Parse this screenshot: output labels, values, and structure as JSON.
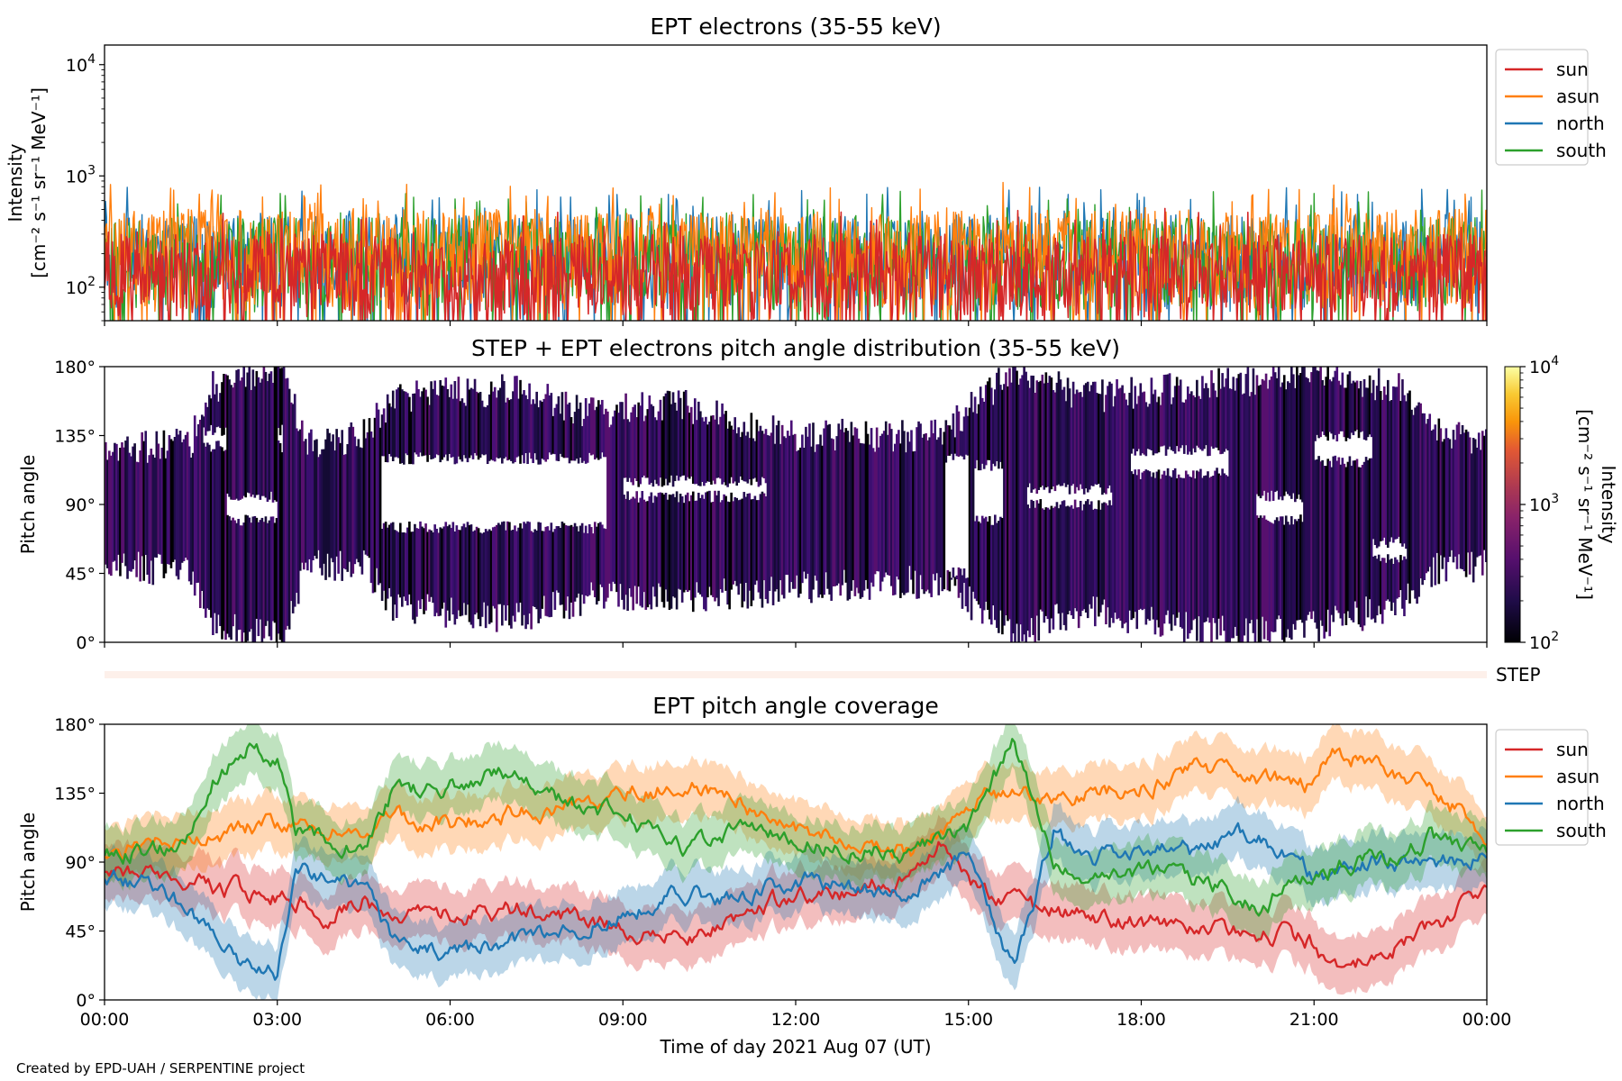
{
  "credit": "Created by EPD-UAH / SERPENTINE project",
  "chart_data": [
    {
      "type": "line",
      "title": "EPT electrons (35-55 keV)",
      "ylabel_line1": "Intensity",
      "ylabel_line2": "[cm⁻² s⁻¹ sr⁻¹ MeV⁻¹]",
      "yscale": "log",
      "ylim": [
        50,
        15000
      ],
      "yticks": [
        {
          "value": 100,
          "base": "10",
          "exp": "2"
        },
        {
          "value": 1000,
          "base": "10",
          "exp": "3"
        },
        {
          "value": 10000,
          "base": "10",
          "exp": "4"
        }
      ],
      "xlim": [
        0,
        24
      ],
      "legend_position": "outside-right-top",
      "series": [
        {
          "name": "sun",
          "color": "#d62728",
          "typical_range": [
            50,
            300
          ]
        },
        {
          "name": "asun",
          "color": "#ff7f0e",
          "typical_range": [
            60,
            500
          ]
        },
        {
          "name": "north",
          "color": "#1f77b4",
          "typical_range": [
            60,
            450
          ]
        },
        {
          "name": "south",
          "color": "#2ca02c",
          "typical_range": [
            60,
            420
          ]
        }
      ]
    },
    {
      "type": "heatmap",
      "title": "STEP + EPT electrons pitch angle distribution (35-55 keV)",
      "ylabel": "Pitch angle",
      "ylim": [
        0,
        180
      ],
      "yticks": [
        "0°",
        "45°",
        "90°",
        "135°",
        "180°"
      ],
      "xlim": [
        0,
        24
      ],
      "colorscale": "inferno",
      "color_range": [
        100,
        10000
      ],
      "colorbar_label_line1": "Intensity",
      "colorbar_label_line2": "[cm⁻² s⁻¹ sr⁻¹ MeV⁻¹]",
      "colorbar_ticks": [
        {
          "value": 100,
          "base": "10",
          "exp": "2"
        },
        {
          "value": 1000,
          "base": "10",
          "exp": "3"
        },
        {
          "value": 10000,
          "base": "10",
          "exp": "4"
        }
      ],
      "envelope": [
        {
          "t": 0.0,
          "lo": 50,
          "hi": 125
        },
        {
          "t": 1.5,
          "lo": 45,
          "hi": 130
        },
        {
          "t": 1.8,
          "lo": 15,
          "hi": 165
        },
        {
          "t": 2.5,
          "lo": 5,
          "hi": 175
        },
        {
          "t": 3.1,
          "lo": 5,
          "hi": 178
        },
        {
          "t": 3.5,
          "lo": 50,
          "hi": 130
        },
        {
          "t": 4.5,
          "lo": 50,
          "hi": 135
        },
        {
          "t": 5.0,
          "lo": 25,
          "hi": 160
        },
        {
          "t": 7.0,
          "lo": 15,
          "hi": 165
        },
        {
          "t": 8.5,
          "lo": 30,
          "hi": 150
        },
        {
          "t": 10.0,
          "lo": 30,
          "hi": 155
        },
        {
          "t": 12.0,
          "lo": 35,
          "hi": 135
        },
        {
          "t": 14.5,
          "lo": 40,
          "hi": 135
        },
        {
          "t": 15.8,
          "lo": 5,
          "hi": 178
        },
        {
          "t": 17.0,
          "lo": 20,
          "hi": 160
        },
        {
          "t": 19.8,
          "lo": 5,
          "hi": 170
        },
        {
          "t": 21.0,
          "lo": 10,
          "hi": 178
        },
        {
          "t": 22.5,
          "lo": 25,
          "hi": 165
        },
        {
          "t": 23.2,
          "lo": 50,
          "hi": 135
        },
        {
          "t": 24.0,
          "lo": 50,
          "hi": 130
        }
      ],
      "gaps": [
        {
          "t0": 4.8,
          "t1": 8.7,
          "lo": 75,
          "hi": 120
        },
        {
          "t0": 2.1,
          "t1": 3.0,
          "lo": 80,
          "hi": 95
        },
        {
          "t0": 1.7,
          "t1": 3.1,
          "lo": 128,
          "hi": 138
        },
        {
          "t0": 9.0,
          "t1": 11.5,
          "lo": 95,
          "hi": 105
        },
        {
          "t0": 14.6,
          "t1": 15.0,
          "lo": 45,
          "hi": 120
        },
        {
          "t0": 15.1,
          "t1": 15.6,
          "lo": 80,
          "hi": 115
        },
        {
          "t0": 16.0,
          "t1": 17.5,
          "lo": 90,
          "hi": 100
        },
        {
          "t0": 17.8,
          "t1": 19.5,
          "lo": 110,
          "hi": 125
        },
        {
          "t0": 20.0,
          "t1": 20.8,
          "lo": 80,
          "hi": 95
        },
        {
          "t0": 21.0,
          "t1": 22.0,
          "lo": 118,
          "hi": 135
        },
        {
          "t0": 21.2,
          "t1": 22.6,
          "lo": 55,
          "hi": 65
        }
      ]
    },
    {
      "type": "bar",
      "label": "STEP",
      "color": "#fdf0ea"
    },
    {
      "type": "area",
      "title": "EPT pitch angle coverage",
      "ylabel": "Pitch angle",
      "xlabel": "Time of day 2021 Aug 07 (UT)",
      "ylim": [
        0,
        180
      ],
      "yticks": [
        "0°",
        "45°",
        "90°",
        "135°",
        "180°"
      ],
      "xlim": [
        0,
        24
      ],
      "xticks": [
        "00:00",
        "03:00",
        "06:00",
        "09:00",
        "12:00",
        "15:00",
        "18:00",
        "21:00",
        "00:00"
      ],
      "band_halfwidth_deg": 18,
      "legend_position": "outside-right-top",
      "series": [
        {
          "name": "sun",
          "color": "#d62728",
          "t": [
            0,
            1,
            2,
            3,
            4,
            4.5,
            5,
            6,
            7,
            8,
            9,
            10,
            11,
            12,
            13,
            14,
            14.5,
            15,
            16,
            17,
            18,
            19,
            20,
            20.9,
            21.3,
            22,
            23,
            24
          ],
          "y": [
            85,
            78,
            72,
            70,
            55,
            70,
            50,
            55,
            60,
            55,
            45,
            40,
            50,
            70,
            72,
            80,
            100,
            75,
            60,
            55,
            50,
            45,
            45,
            40,
            15,
            30,
            45,
            70
          ]
        },
        {
          "name": "asun",
          "color": "#ff7f0e",
          "t": [
            0,
            1,
            2,
            3,
            4,
            4.5,
            5,
            6,
            7,
            8,
            9,
            10,
            11,
            12,
            13,
            14,
            14.5,
            15,
            16,
            17,
            18,
            19,
            20,
            20.9,
            21.3,
            22,
            23,
            24
          ],
          "y": [
            95,
            102,
            110,
            115,
            110,
            100,
            120,
            115,
            120,
            125,
            135,
            140,
            130,
            110,
            105,
            95,
            110,
            130,
            135,
            135,
            140,
            150,
            145,
            140,
            165,
            155,
            140,
            110
          ]
        },
        {
          "name": "north",
          "color": "#1f77b4",
          "t": [
            0,
            1,
            2,
            2.5,
            3,
            3.3,
            4,
            4.5,
            5,
            6,
            7,
            8,
            9,
            10,
            11,
            12,
            13,
            14,
            15,
            15.8,
            16.5,
            17,
            18,
            19,
            20,
            21,
            22,
            23,
            24
          ],
          "y": [
            80,
            75,
            40,
            20,
            15,
            85,
            80,
            75,
            40,
            30,
            35,
            45,
            55,
            70,
            65,
            80,
            75,
            70,
            95,
            20,
            115,
            90,
            100,
            95,
            110,
            80,
            90,
            85,
            95
          ]
        },
        {
          "name": "south",
          "color": "#2ca02c",
          "t": [
            0,
            1,
            1.5,
            2,
            2.5,
            3,
            3.3,
            4,
            4.5,
            5,
            6,
            7,
            8,
            9,
            10,
            11,
            12,
            13,
            14,
            15,
            15.8,
            16.5,
            17,
            18,
            19,
            20,
            21,
            22,
            23,
            24
          ],
          "y": [
            95,
            100,
            110,
            150,
            165,
            160,
            110,
            105,
            95,
            135,
            140,
            150,
            130,
            120,
            100,
            110,
            105,
            100,
            95,
            110,
            170,
            90,
            75,
            80,
            80,
            60,
            85,
            90,
            105,
            95
          ]
        }
      ]
    }
  ]
}
